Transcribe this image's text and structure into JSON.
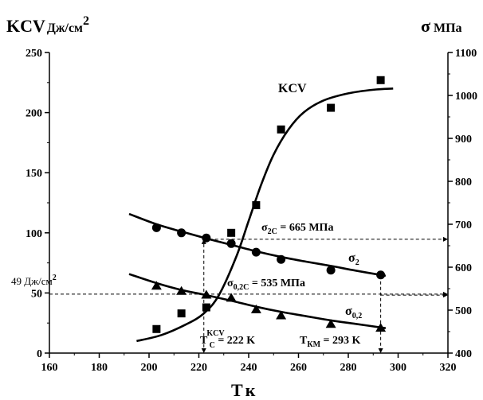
{
  "chart_data": {
    "type": "line",
    "x_axis": {
      "label_symbol": "T",
      "label_unit": "к",
      "range": [
        160,
        320
      ],
      "ticks": [
        160,
        180,
        200,
        220,
        240,
        260,
        280,
        300,
        320
      ]
    },
    "y_axis_left": {
      "label_symbol": "KCV",
      "label_unit": "Дж/см",
      "label_unit_sup": "2",
      "range": [
        0,
        250
      ],
      "ticks": [
        0,
        50,
        100,
        150,
        200,
        250
      ]
    },
    "y_axis_right": {
      "label_symbol": "σ",
      "label_unit": "МПа",
      "range": [
        400,
        1100
      ],
      "ticks": [
        400,
        500,
        600,
        700,
        800,
        900,
        1000,
        1100
      ]
    },
    "series": [
      {
        "name": "KCV",
        "axis": "left",
        "marker": "square",
        "points": [
          [
            203,
            20
          ],
          [
            213,
            33
          ],
          [
            223,
            38
          ],
          [
            233,
            100
          ],
          [
            243,
            123
          ],
          [
            253,
            186
          ],
          [
            273,
            204
          ],
          [
            293,
            227
          ]
        ],
        "curve": [
          [
            195,
            10
          ],
          [
            205,
            15
          ],
          [
            215,
            24
          ],
          [
            222,
            33
          ],
          [
            228,
            48
          ],
          [
            235,
            80
          ],
          [
            240,
            110
          ],
          [
            245,
            140
          ],
          [
            250,
            165
          ],
          [
            256,
            186
          ],
          [
            262,
            200
          ],
          [
            270,
            210
          ],
          [
            280,
            216
          ],
          [
            290,
            219
          ],
          [
            298,
            220
          ]
        ]
      },
      {
        "name": "σ",
        "name_sub": "2",
        "axis": "right",
        "marker": "circle",
        "points": [
          [
            203,
            692
          ],
          [
            213,
            680
          ],
          [
            223,
            668
          ],
          [
            233,
            655
          ],
          [
            243,
            635
          ],
          [
            253,
            618
          ],
          [
            273,
            593
          ],
          [
            293,
            582
          ]
        ],
        "curve": [
          [
            192,
            724
          ],
          [
            203,
            700
          ],
          [
            213,
            683
          ],
          [
            223,
            667
          ],
          [
            233,
            652
          ],
          [
            243,
            637
          ],
          [
            253,
            624
          ],
          [
            263,
            613
          ],
          [
            273,
            603
          ],
          [
            283,
            592
          ],
          [
            295,
            580
          ]
        ]
      },
      {
        "name": "σ",
        "name_sub": "0,2",
        "axis": "right",
        "marker": "triangle",
        "points": [
          [
            203,
            557
          ],
          [
            213,
            545
          ],
          [
            223,
            536
          ],
          [
            233,
            529
          ],
          [
            243,
            502
          ],
          [
            253,
            488
          ],
          [
            273,
            468
          ],
          [
            293,
            459
          ]
        ],
        "curve": [
          [
            192,
            584
          ],
          [
            203,
            563
          ],
          [
            213,
            547
          ],
          [
            223,
            535
          ],
          [
            233,
            522
          ],
          [
            243,
            508
          ],
          [
            253,
            496
          ],
          [
            263,
            486
          ],
          [
            273,
            476
          ],
          [
            283,
            468
          ],
          [
            295,
            458
          ]
        ]
      }
    ],
    "annotations": {
      "kcv_label": "KCV",
      "sigma2_label": "σ",
      "sigma2_sub": "2",
      "sigma02_label": "σ",
      "sigma02_sub": "0,2",
      "sigma2c_text": "σ",
      "sigma2c_sub": "2C",
      "sigma2c_value": " = 665 МПа",
      "sigma02c_text": "σ",
      "sigma02c_sub": "0,2C",
      "sigma02c_value": " = 535 МПа",
      "kcv_level_value": "49 Дж/см",
      "kcv_level_sup": "2",
      "tc_text": "T",
      "tc_sub": "C",
      "tc_sup": "KCV",
      "tc_value": " = 222 K",
      "tkm_text": "T",
      "tkm_sub": "КМ",
      "tkm_value": " = 293 K"
    },
    "reference_lines": {
      "kcv_level": 49,
      "sigma2c": 665,
      "sigma02c": 535,
      "tc": 222,
      "tkm": 293
    }
  }
}
